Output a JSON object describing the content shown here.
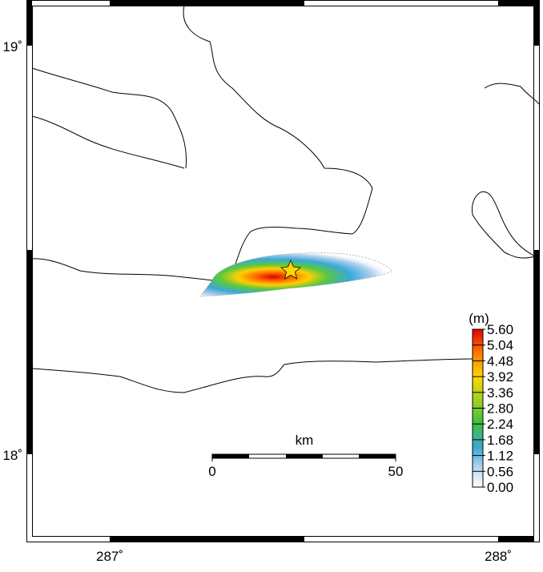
{
  "map": {
    "lat_labels": [
      "19˚",
      "18˚"
    ],
    "lon_labels": [
      "287˚",
      "288˚"
    ],
    "colorbar": {
      "unit": "(m)",
      "labels": [
        "5.60",
        "5.04",
        "4.48",
        "3.92",
        "3.36",
        "2.80",
        "2.24",
        "1.68",
        "1.12",
        "0.56",
        "0.00"
      ]
    },
    "scale_bar": {
      "unit": "km",
      "start": "0",
      "end": "50"
    }
  }
}
